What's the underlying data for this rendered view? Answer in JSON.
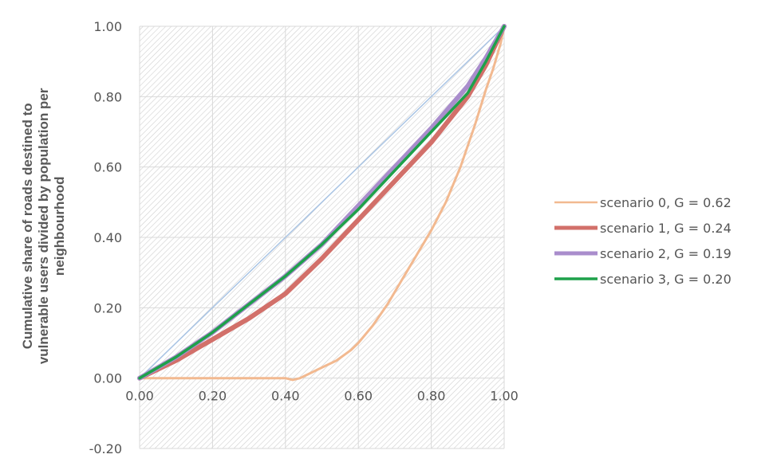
{
  "chart_data": {
    "type": "line",
    "title": "",
    "xlabel": "",
    "ylabel": "Cumulative share of roads destined to vulnerable users divided by population per neighbourhood",
    "ylabel_lines": [
      "Cumulative share of roads destined to",
      "vulnerable users divided by population per",
      "neighbourhood"
    ],
    "xlim": [
      0,
      1
    ],
    "ylim": [
      -0.2,
      1
    ],
    "x_ticks": [
      "0.00",
      "0.20",
      "0.40",
      "0.60",
      "0.80",
      "1.00"
    ],
    "y_ticks": [
      "-0.20",
      "0.00",
      "0.20",
      "0.40",
      "0.60",
      "0.80",
      "1.00"
    ],
    "grid": true,
    "plot_background": "hatched",
    "legend_position": "right",
    "equality_line": {
      "x": [
        0,
        1
      ],
      "y": [
        0,
        1
      ],
      "color": "#a9c4e4"
    },
    "series": [
      {
        "name": "scenario 0, G = 0.62",
        "color": "#f2b990",
        "x": [
          0.0,
          0.1,
          0.2,
          0.3,
          0.4,
          0.42,
          0.44,
          0.5,
          0.54,
          0.58,
          0.6,
          0.64,
          0.68,
          0.72,
          0.76,
          0.8,
          0.84,
          0.88,
          0.92,
          0.95,
          0.97,
          0.99,
          1.0
        ],
        "y": [
          0.0,
          0.0,
          0.0,
          0.0,
          0.0,
          -0.005,
          0.0,
          0.03,
          0.05,
          0.08,
          0.1,
          0.15,
          0.21,
          0.28,
          0.35,
          0.42,
          0.5,
          0.6,
          0.72,
          0.82,
          0.88,
          0.95,
          1.0
        ]
      },
      {
        "name": "scenario 1, G = 0.24",
        "color": "#d2706a",
        "x": [
          0.0,
          0.1,
          0.2,
          0.3,
          0.4,
          0.5,
          0.6,
          0.7,
          0.8,
          0.9,
          0.95,
          1.0
        ],
        "y": [
          0.0,
          0.05,
          0.11,
          0.17,
          0.24,
          0.34,
          0.45,
          0.56,
          0.67,
          0.8,
          0.89,
          1.0
        ]
      },
      {
        "name": "scenario 2, G = 0.19",
        "color": "#a98dcc",
        "x": [
          0.0,
          0.1,
          0.2,
          0.3,
          0.4,
          0.5,
          0.6,
          0.7,
          0.8,
          0.9,
          0.95,
          1.0
        ],
        "y": [
          0.0,
          0.06,
          0.13,
          0.21,
          0.29,
          0.38,
          0.49,
          0.6,
          0.71,
          0.83,
          0.91,
          1.0
        ]
      },
      {
        "name": "scenario 3, G = 0.20",
        "color": "#1ea14a",
        "x": [
          0.0,
          0.1,
          0.2,
          0.3,
          0.4,
          0.5,
          0.6,
          0.7,
          0.8,
          0.9,
          0.95,
          1.0
        ],
        "y": [
          0.0,
          0.06,
          0.13,
          0.21,
          0.29,
          0.38,
          0.48,
          0.59,
          0.7,
          0.81,
          0.9,
          1.0
        ]
      }
    ]
  }
}
